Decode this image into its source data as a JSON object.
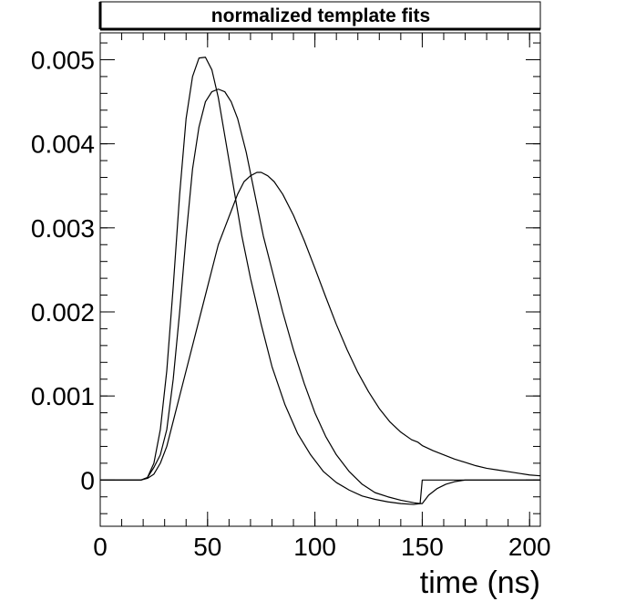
{
  "chart_data": {
    "type": "line",
    "title": "normalized template fits",
    "xlabel": "time (ns)",
    "ylabel": "",
    "xlim": [
      0,
      205
    ],
    "ylim": [
      -0.00055,
      0.00532
    ],
    "x_ticks": [
      0,
      50,
      100,
      150,
      200
    ],
    "x_tick_labels": [
      "0",
      "50",
      "100",
      "150",
      "200"
    ],
    "y_ticks": [
      0,
      0.001,
      0.002,
      0.003,
      0.004,
      0.005
    ],
    "y_tick_labels": [
      "0",
      "0.001",
      "0.002",
      "0.003",
      "0.004",
      "0.005"
    ],
    "grid": false,
    "legend": "none",
    "line_color": "#000000",
    "series": [
      {
        "x": [
          0,
          19,
          22,
          25,
          28,
          31,
          34,
          37,
          40,
          43,
          46,
          49,
          52,
          55,
          58,
          62,
          66,
          70,
          75,
          80,
          86,
          92,
          98,
          104,
          110,
          116,
          122,
          128,
          134,
          140,
          146,
          149,
          150,
          153,
          156,
          160,
          165,
          170,
          175,
          180,
          190,
          200,
          205
        ],
        "y": [
          0,
          0,
          3e-05,
          0.0002,
          0.0006,
          0.0013,
          0.0023,
          0.0034,
          0.0043,
          0.0048,
          0.00502,
          0.00503,
          0.00488,
          0.00455,
          0.0041,
          0.0035,
          0.0029,
          0.0024,
          0.00185,
          0.00135,
          0.0009,
          0.00055,
          0.0003,
          0.0001,
          -3e-05,
          -0.00012,
          -0.00019,
          -0.00023,
          -0.00026,
          -0.00028,
          -0.00029,
          -0.00028,
          0,
          0,
          0,
          0,
          0,
          0,
          0,
          0,
          0,
          0,
          0
        ]
      },
      {
        "x": [
          0,
          19,
          22,
          25,
          28,
          31,
          34,
          37,
          40,
          43,
          46,
          49,
          52,
          55,
          58,
          61,
          64,
          68,
          72,
          76,
          80,
          85,
          90,
          95,
          100,
          105,
          110,
          116,
          122,
          128,
          134,
          140,
          146,
          149,
          150,
          153,
          157,
          161,
          165,
          170,
          175,
          180,
          190,
          200,
          205
        ],
        "y": [
          0,
          0,
          3e-05,
          0.00015,
          0.0003,
          0.0006,
          0.0012,
          0.002,
          0.0029,
          0.0037,
          0.0042,
          0.0045,
          0.00462,
          0.00465,
          0.00462,
          0.0045,
          0.0043,
          0.0039,
          0.0034,
          0.0029,
          0.0025,
          0.002,
          0.00155,
          0.00115,
          0.0008,
          0.00052,
          0.0003,
          0.0001,
          -5e-05,
          -0.00015,
          -0.0002,
          -0.00024,
          -0.00027,
          -0.00028,
          -0.00028,
          -0.00018,
          -0.0001,
          -5e-05,
          -2e-05,
          0,
          0,
          0,
          0,
          0,
          0
        ]
      },
      {
        "x": [
          0,
          19,
          22,
          25,
          28,
          31,
          34,
          37,
          40,
          43,
          46,
          49,
          52,
          55,
          58,
          61,
          64,
          67,
          70,
          73,
          75,
          78,
          81,
          85,
          90,
          95,
          100,
          105,
          110,
          115,
          120,
          125,
          130,
          135,
          140,
          145,
          148,
          150,
          155,
          160,
          165,
          170,
          175,
          180,
          185,
          190,
          195,
          200,
          205
        ],
        "y": [
          0,
          0,
          2e-05,
          7e-05,
          0.0002,
          0.0004,
          0.0007,
          0.001,
          0.0013,
          0.0016,
          0.0019,
          0.0022,
          0.0025,
          0.0028,
          0.003,
          0.0032,
          0.0034,
          0.00355,
          0.00362,
          0.00366,
          0.00366,
          0.00362,
          0.00355,
          0.0034,
          0.00315,
          0.00285,
          0.00252,
          0.00218,
          0.00185,
          0.00155,
          0.00128,
          0.00105,
          0.00085,
          0.00069,
          0.00057,
          0.00048,
          0.00045,
          0.00041,
          0.00035,
          0.0003,
          0.00025,
          0.00021,
          0.00017,
          0.00014,
          0.00012,
          0.0001,
          8e-05,
          6e-05,
          5e-05
        ]
      }
    ]
  }
}
